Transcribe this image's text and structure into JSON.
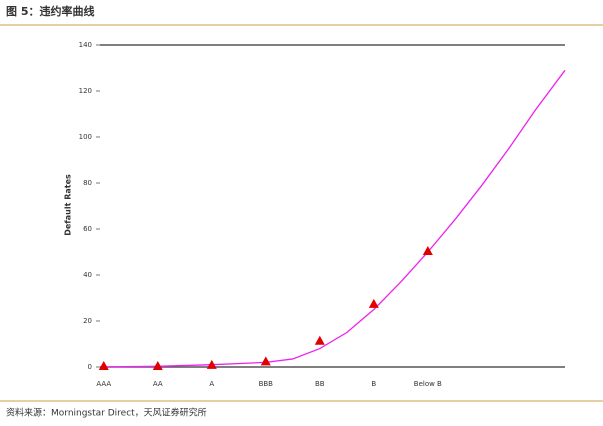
{
  "header": {
    "title": "图 5：违约率曲线"
  },
  "chart_data": {
    "type": "line",
    "categories": [
      "AAA",
      "AA",
      "A",
      "BBB",
      "BB",
      "B",
      "Below B"
    ],
    "y_label": "Default Rates",
    "ylim": [
      0,
      140
    ],
    "yticks": [
      0,
      20,
      40,
      60,
      80,
      100,
      120,
      140
    ],
    "xlim": [
      -0.07,
      8.54
    ],
    "series": [
      {
        "marker": "triangle",
        "color": "#e00000",
        "values": [
          0,
          0,
          0.5,
          2,
          11,
          27,
          50
        ]
      },
      {
        "color": "#ee22ee",
        "x": [
          0,
          1,
          2,
          3,
          3.5,
          4,
          4.5,
          5,
          5.5,
          6,
          6.5,
          7,
          7.5,
          8,
          8.54
        ],
        "values": [
          0,
          0.3,
          1,
          2,
          3.5,
          8,
          15,
          25,
          37,
          50,
          64,
          79,
          95,
          112,
          129
        ]
      }
    ]
  },
  "footer": {
    "source": "资料来源：Morningstar Direct，天风证券研究所"
  }
}
